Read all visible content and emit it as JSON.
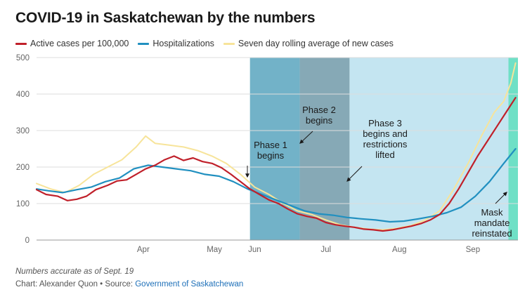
{
  "title": "COVID-19 in Saskatchewan by the numbers",
  "note": "Numbers accurate as of Sept. 19",
  "credit": {
    "prefix": "Chart: Alexander Quon • Source: ",
    "source_link": "Government of Saskatchewan"
  },
  "colors": {
    "active": "#c0202a",
    "hosp": "#2190c0",
    "avg": "#f7e49a",
    "phase1": "#72b2c8",
    "phase2": "#86a9b6",
    "phase3": "#c4e5f1",
    "mask": "#6fe0c6",
    "grid": "#dddddd"
  },
  "chart_data": {
    "type": "line",
    "xlabel": "",
    "ylabel": "",
    "ylim": [
      0,
      500
    ],
    "yticks": [
      0,
      100,
      200,
      300,
      400,
      500
    ],
    "xlim": [
      "2021-03-01",
      "2021-09-20"
    ],
    "month_ticks": [
      {
        "label": "Apr",
        "date": "2021-04-15"
      },
      {
        "label": "May",
        "date": "2021-05-15"
      },
      {
        "label": "Jun",
        "date": "2021-06-01"
      },
      {
        "label": "Jul",
        "date": "2021-07-01"
      },
      {
        "label": "Aug",
        "date": "2021-08-01"
      },
      {
        "label": "Sep",
        "date": "2021-09-01"
      }
    ],
    "grid": true,
    "legend": "top-left",
    "series": [
      {
        "name": "Active cases per 100,000",
        "color_key": "active",
        "points": [
          [
            "2021-03-01",
            138
          ],
          [
            "2021-03-05",
            125
          ],
          [
            "2021-03-10",
            120
          ],
          [
            "2021-03-14",
            108
          ],
          [
            "2021-03-18",
            112
          ],
          [
            "2021-03-22",
            120
          ],
          [
            "2021-03-26",
            138
          ],
          [
            "2021-03-31",
            150
          ],
          [
            "2021-04-04",
            162
          ],
          [
            "2021-04-08",
            165
          ],
          [
            "2021-04-12",
            180
          ],
          [
            "2021-04-16",
            195
          ],
          [
            "2021-04-20",
            205
          ],
          [
            "2021-04-24",
            220
          ],
          [
            "2021-04-28",
            230
          ],
          [
            "2021-05-02",
            218
          ],
          [
            "2021-05-06",
            225
          ],
          [
            "2021-05-10",
            215
          ],
          [
            "2021-05-14",
            210
          ],
          [
            "2021-05-18",
            198
          ],
          [
            "2021-05-22",
            180
          ],
          [
            "2021-05-26",
            160
          ],
          [
            "2021-05-30",
            140
          ],
          [
            "2021-06-03",
            125
          ],
          [
            "2021-06-07",
            110
          ],
          [
            "2021-06-11",
            100
          ],
          [
            "2021-06-15",
            85
          ],
          [
            "2021-06-19",
            72
          ],
          [
            "2021-06-23",
            65
          ],
          [
            "2021-06-27",
            60
          ],
          [
            "2021-07-01",
            48
          ],
          [
            "2021-07-05",
            42
          ],
          [
            "2021-07-09",
            38
          ],
          [
            "2021-07-13",
            35
          ],
          [
            "2021-07-17",
            30
          ],
          [
            "2021-07-21",
            28
          ],
          [
            "2021-07-25",
            25
          ],
          [
            "2021-07-29",
            28
          ],
          [
            "2021-08-02",
            33
          ],
          [
            "2021-08-06",
            38
          ],
          [
            "2021-08-10",
            45
          ],
          [
            "2021-08-14",
            55
          ],
          [
            "2021-08-18",
            70
          ],
          [
            "2021-08-22",
            100
          ],
          [
            "2021-08-26",
            140
          ],
          [
            "2021-08-30",
            185
          ],
          [
            "2021-09-03",
            230
          ],
          [
            "2021-09-07",
            270
          ],
          [
            "2021-09-11",
            310
          ],
          [
            "2021-09-15",
            350
          ],
          [
            "2021-09-19",
            390
          ]
        ]
      },
      {
        "name": "Hospitalizations",
        "color_key": "hosp",
        "points": [
          [
            "2021-03-01",
            140
          ],
          [
            "2021-03-06",
            135
          ],
          [
            "2021-03-12",
            130
          ],
          [
            "2021-03-18",
            138
          ],
          [
            "2021-03-24",
            145
          ],
          [
            "2021-03-30",
            160
          ],
          [
            "2021-04-05",
            170
          ],
          [
            "2021-04-11",
            195
          ],
          [
            "2021-04-17",
            205
          ],
          [
            "2021-04-23",
            200
          ],
          [
            "2021-04-29",
            195
          ],
          [
            "2021-05-05",
            190
          ],
          [
            "2021-05-11",
            180
          ],
          [
            "2021-05-17",
            175
          ],
          [
            "2021-05-23",
            160
          ],
          [
            "2021-05-29",
            140
          ],
          [
            "2021-06-04",
            125
          ],
          [
            "2021-06-10",
            110
          ],
          [
            "2021-06-16",
            95
          ],
          [
            "2021-06-22",
            80
          ],
          [
            "2021-06-28",
            72
          ],
          [
            "2021-07-04",
            68
          ],
          [
            "2021-07-10",
            62
          ],
          [
            "2021-07-16",
            58
          ],
          [
            "2021-07-22",
            55
          ],
          [
            "2021-07-28",
            50
          ],
          [
            "2021-08-03",
            52
          ],
          [
            "2021-08-09",
            58
          ],
          [
            "2021-08-15",
            65
          ],
          [
            "2021-08-21",
            75
          ],
          [
            "2021-08-27",
            90
          ],
          [
            "2021-09-02",
            120
          ],
          [
            "2021-09-08",
            160
          ],
          [
            "2021-09-14",
            210
          ],
          [
            "2021-09-19",
            250
          ]
        ]
      },
      {
        "name": "Seven day rolling average of new cases",
        "color_key": "avg",
        "points": [
          [
            "2021-03-01",
            155
          ],
          [
            "2021-03-07",
            140
          ],
          [
            "2021-03-13",
            130
          ],
          [
            "2021-03-19",
            150
          ],
          [
            "2021-03-25",
            180
          ],
          [
            "2021-03-31",
            200
          ],
          [
            "2021-04-06",
            220
          ],
          [
            "2021-04-12",
            255
          ],
          [
            "2021-04-16",
            285
          ],
          [
            "2021-04-20",
            265
          ],
          [
            "2021-04-26",
            260
          ],
          [
            "2021-05-02",
            255
          ],
          [
            "2021-05-08",
            245
          ],
          [
            "2021-05-14",
            230
          ],
          [
            "2021-05-20",
            210
          ],
          [
            "2021-05-26",
            180
          ],
          [
            "2021-06-01",
            145
          ],
          [
            "2021-06-07",
            125
          ],
          [
            "2021-06-13",
            100
          ],
          [
            "2021-06-19",
            80
          ],
          [
            "2021-06-25",
            70
          ],
          [
            "2021-07-01",
            55
          ],
          [
            "2021-07-07",
            42
          ],
          [
            "2021-07-13",
            35
          ],
          [
            "2021-07-19",
            30
          ],
          [
            "2021-07-25",
            28
          ],
          [
            "2021-07-31",
            32
          ],
          [
            "2021-08-06",
            40
          ],
          [
            "2021-08-12",
            55
          ],
          [
            "2021-08-18",
            80
          ],
          [
            "2021-08-24",
            140
          ],
          [
            "2021-08-30",
            210
          ],
          [
            "2021-09-05",
            290
          ],
          [
            "2021-09-10",
            350
          ],
          [
            "2021-09-14",
            380
          ],
          [
            "2021-09-17",
            430
          ],
          [
            "2021-09-19",
            485
          ]
        ]
      }
    ],
    "bands": [
      {
        "name": "phase1",
        "start": "2021-05-30",
        "end": "2021-06-20",
        "color_key": "phase1"
      },
      {
        "name": "phase2",
        "start": "2021-06-20",
        "end": "2021-07-11",
        "color_key": "phase2"
      },
      {
        "name": "phase3",
        "start": "2021-07-11",
        "end": "2021-09-16",
        "color_key": "phase3"
      },
      {
        "name": "mask",
        "start": "2021-09-16",
        "end": "2021-09-20",
        "color_key": "mask"
      }
    ],
    "annotations": [
      {
        "id": "phase1",
        "lines": [
          "Phase 1",
          "begins"
        ],
        "arrow": "down"
      },
      {
        "id": "phase2",
        "lines": [
          "Phase 2",
          "begins"
        ],
        "arrow": "down-left"
      },
      {
        "id": "phase3",
        "lines": [
          "Phase 3",
          "begins and",
          "restrictions",
          "lifted"
        ],
        "arrow": "down-left"
      },
      {
        "id": "mask",
        "lines": [
          "Mask",
          "mandate",
          "reinstated"
        ],
        "arrow": "up-right"
      }
    ]
  }
}
